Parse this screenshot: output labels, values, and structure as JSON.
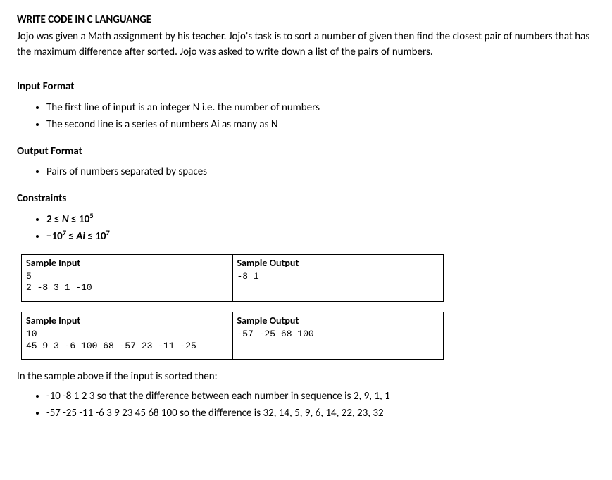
{
  "title": "WRITE CODE IN C LANGUANGE",
  "intro": "Jojo was given a Math assignment by his teacher. Jojo's task is to sort a number of given then find the closest pair of numbers that has the maximum difference after sorted. Jojo was asked to write down a list of the pairs of numbers.",
  "input_format_head": "Input Format",
  "input_items": [
    "The first line of input is an integer N i.e. the number of numbers",
    "The second line is a series of numbers Ai as many as N"
  ],
  "output_format_head": "Output Format",
  "output_items": [
    "Pairs of numbers separated by spaces"
  ],
  "constraints_head": "Constraints",
  "constraints": {
    "n_low": "2",
    "n_high_base": "10",
    "n_high_exp": "5",
    "a_low_base": "−10",
    "a_low_exp": "7",
    "a_high_base": "10",
    "a_high_exp": "7"
  },
  "sample_input_label": "Sample Input",
  "sample_output_label": "Sample Output",
  "samples": [
    {
      "input": "5\n2 -8 3 1 -10",
      "output": "-8 1"
    },
    {
      "input": "10\n45 9 3 -6 100 68 -57 23 -11 -25",
      "output": "-57 -25 68 100"
    }
  ],
  "note_head": "In the sample above if the input is sorted then:",
  "note_items": [
    "-10 -8 1 2 3 so that the difference between each number in sequence is 2, 9, 1, 1",
    "-57 -25 -11 -6 3 9 23 45 68 100 so the difference is 32, 14, 5, 9, 6, 14, 22, 23, 32"
  ]
}
